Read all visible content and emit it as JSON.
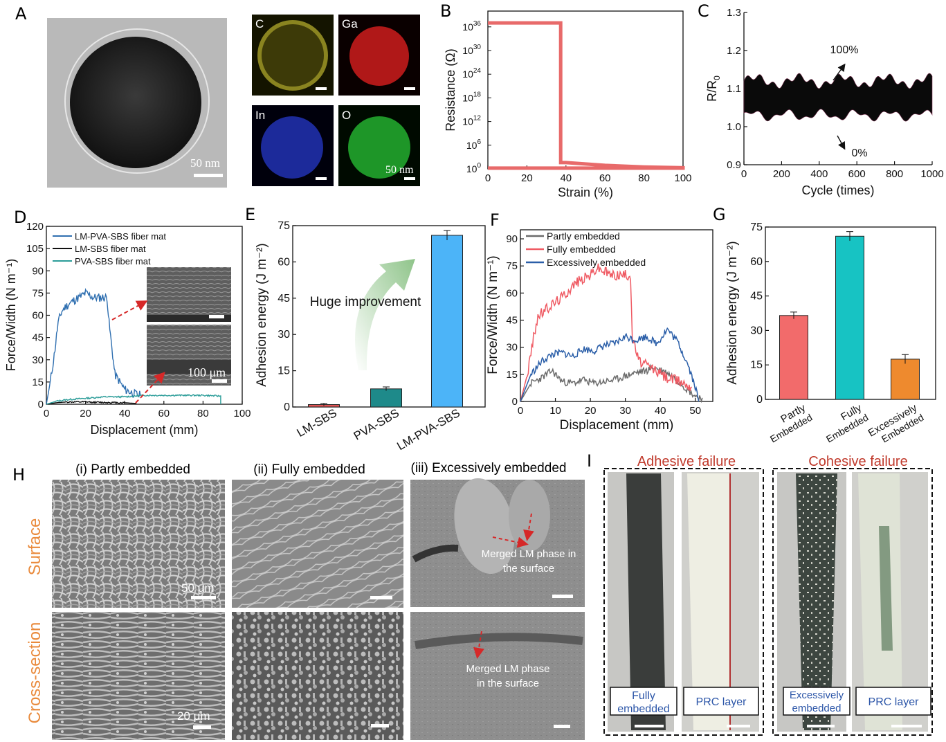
{
  "panels": {
    "A": "A",
    "B": "B",
    "C": "C",
    "D": "D",
    "E": "E",
    "F": "F",
    "G": "G",
    "H": "H",
    "I": "I"
  },
  "panel_a": {
    "tem_scale": "50 nm",
    "maps": [
      {
        "element": "C",
        "color": "#c8b52a"
      },
      {
        "element": "Ga",
        "color": "#d81c1c"
      },
      {
        "element": "In",
        "color": "#2838b8"
      },
      {
        "element": "O",
        "color": "#22a82e"
      }
    ],
    "map_scale": "50 nm"
  },
  "panel_h": {
    "columns": [
      "(i) Partly embedded",
      "(ii) Fully embedded",
      "(iii) Excessively embedded"
    ],
    "rows": [
      "Surface",
      "Cross-section"
    ],
    "scale_surface": "50 μm",
    "scale_cross": "20 μm",
    "note_surface": [
      "Merged LM phase in",
      "the surface"
    ],
    "note_cross": [
      "Merged LM phase",
      "in the surface"
    ],
    "row_color": "#e98a3c"
  },
  "panel_i": {
    "groups": [
      {
        "title": "Adhesive failure",
        "labels": [
          [
            "Fully",
            "embedded"
          ],
          [
            "PRC layer"
          ]
        ]
      },
      {
        "title": "Cohesive failure",
        "labels": [
          [
            "Excessively",
            "embedded"
          ],
          [
            "PRC layer"
          ]
        ]
      }
    ],
    "title_color": "#c0392b",
    "label_color": "#2c56a8"
  },
  "chart_data": [
    {
      "id": "B",
      "type": "line",
      "xlabel": "Strain (%)",
      "ylabel": "Resistance (Ω)",
      "xlim": [
        0,
        100
      ],
      "ylim_log10": [
        0,
        40
      ],
      "xticks": [
        0,
        20,
        40,
        60,
        80,
        100
      ],
      "yticks_log10": [
        0,
        6,
        12,
        18,
        24,
        30,
        36
      ],
      "series": [
        {
          "name": "resistance",
          "color": "#e86a6a",
          "x": [
            0,
            36,
            37,
            37.3,
            37.3,
            40,
            60,
            80,
            100,
            100,
            0
          ],
          "log10_y": [
            37,
            37,
            37,
            37,
            1.6,
            1.6,
            0.9,
            0.5,
            0.3,
            0.2,
            0.2
          ]
        }
      ]
    },
    {
      "id": "C",
      "type": "line",
      "xlabel": "Cycle (times)",
      "ylabel": "R/R0",
      "xlim": [
        0,
        1000
      ],
      "ylim": [
        0.9,
        1.3
      ],
      "xticks": [
        0,
        200,
        400,
        600,
        800,
        1000
      ],
      "yticks": [
        0.9,
        1.0,
        1.1,
        1.2,
        1.3
      ],
      "band": {
        "upper": 1.12,
        "lower": 1.03
      },
      "annotations": [
        "100%",
        "0%"
      ]
    },
    {
      "id": "D",
      "type": "line",
      "xlabel": "Displacement (mm)",
      "ylabel": "Force/Width (N m⁻¹)",
      "xlim": [
        0,
        100
      ],
      "ylim": [
        0,
        120
      ],
      "xticks": [
        0,
        20,
        40,
        60,
        80,
        100
      ],
      "yticks": [
        0,
        15,
        30,
        45,
        60,
        75,
        90,
        105,
        120
      ],
      "inset_scale": "100 μm",
      "series": [
        {
          "name": "LM-PVA-SBS fiber mat",
          "color": "#2f6fb0",
          "x": [
            0,
            2,
            4,
            6,
            8,
            10,
            14,
            18,
            20,
            24,
            28,
            31,
            32,
            35,
            40,
            45,
            48
          ],
          "y": [
            0,
            15,
            33,
            55,
            63,
            66,
            70,
            73,
            75,
            72,
            72,
            72,
            55,
            20,
            10,
            7,
            6
          ]
        },
        {
          "name": "LM-SBS fiber mat",
          "color": "#111111",
          "x": [
            0,
            5,
            10,
            20,
            30,
            40,
            46
          ],
          "y": [
            0,
            1,
            1.5,
            1.5,
            1.2,
            1,
            0.5
          ]
        },
        {
          "name": "PVA-SBS fiber mat",
          "color": "#2a9c98",
          "x": [
            0,
            5,
            10,
            20,
            30,
            40,
            50,
            60,
            70,
            80,
            89,
            89
          ],
          "y": [
            0,
            2,
            3,
            4,
            5,
            5,
            6,
            6,
            6,
            6,
            5.5,
            0
          ]
        }
      ]
    },
    {
      "id": "E",
      "type": "bar",
      "ylabel": "Adhesion energy (J m⁻²)",
      "ylim": [
        0,
        75
      ],
      "yticks": [
        0,
        15,
        30,
        45,
        60,
        75
      ],
      "categories": [
        "LM-SBS",
        "PVA-SBS",
        "LM-PVA-SBS"
      ],
      "values": [
        1,
        7.5,
        71
      ],
      "errors": [
        0.5,
        0.8,
        2
      ],
      "colors": [
        "#e05555",
        "#1e8a8a",
        "#4cb4f8"
      ],
      "annotation": "Huge improvement"
    },
    {
      "id": "F",
      "type": "line",
      "xlabel": "Displacement (mm)",
      "ylabel": "Force/Width (N m⁻¹)",
      "xlim": [
        0,
        55
      ],
      "ylim": [
        0,
        95
      ],
      "xticks": [
        0,
        10,
        20,
        30,
        40,
        50
      ],
      "yticks": [
        0,
        15,
        30,
        45,
        60,
        75,
        90
      ],
      "series": [
        {
          "name": "Partly embedded",
          "color": "#6b6b6b",
          "x": [
            0,
            3,
            6,
            9,
            12,
            15,
            18,
            21,
            24,
            27,
            30,
            33,
            36,
            38,
            42,
            46,
            48,
            50,
            52
          ],
          "y": [
            0,
            10,
            13,
            17,
            11,
            10,
            12,
            10,
            11,
            12,
            14,
            16,
            17,
            19,
            16,
            10,
            6,
            3,
            2
          ]
        },
        {
          "name": "Fully embedded",
          "color": "#ef5a63",
          "x": [
            0,
            2,
            4,
            5,
            8,
            12,
            16,
            20,
            22,
            26,
            30,
            31.5,
            32,
            34,
            38,
            42,
            46,
            49
          ],
          "y": [
            0,
            15,
            38,
            47,
            52,
            58,
            66,
            70,
            74,
            70,
            70,
            70,
            35,
            22,
            18,
            13,
            11,
            8
          ]
        },
        {
          "name": "Excessively embedded",
          "color": "#2a5ea8",
          "x": [
            0,
            3,
            6,
            9,
            12,
            15,
            18,
            21,
            24,
            27,
            30,
            33,
            36,
            39,
            42,
            45,
            48,
            50,
            51
          ],
          "y": [
            0,
            15,
            22,
            26,
            27,
            25,
            29,
            28,
            31,
            32,
            36,
            34,
            36,
            32,
            40,
            33,
            20,
            8,
            0
          ]
        }
      ]
    },
    {
      "id": "G",
      "type": "bar",
      "ylabel": "Adhesion energy (J m⁻²)",
      "ylim": [
        0,
        75
      ],
      "yticks": [
        0,
        15,
        30,
        45,
        60,
        75
      ],
      "categories": [
        [
          "Partly",
          "Embedded"
        ],
        [
          "Fully",
          "Embedded"
        ],
        [
          "Excessively",
          "Embedded"
        ]
      ],
      "values": [
        36.5,
        71,
        17.5
      ],
      "errors": [
        1.5,
        2,
        2
      ],
      "colors": [
        "#f26b6b",
        "#17c3c3",
        "#ee8a2e"
      ]
    }
  ]
}
